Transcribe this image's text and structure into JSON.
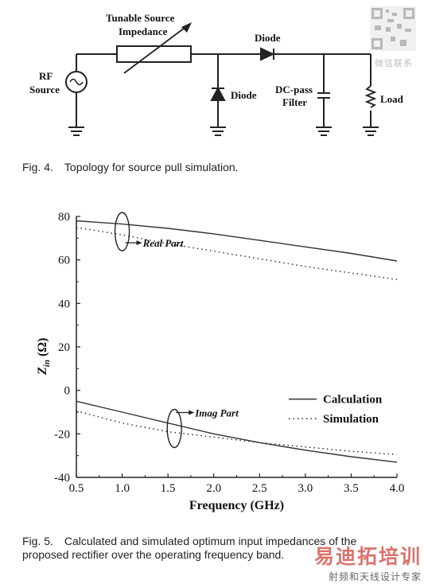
{
  "figure4": {
    "labels": {
      "rf_source": "RF",
      "rf_source2": "Source",
      "tunable1": "Tunable Source",
      "tunable2": "Impedance",
      "diode_series": "Diode",
      "diode_shunt": "Diode",
      "dcpass1": "DC-pass",
      "dcpass2": "Filter",
      "load": "Load"
    },
    "caption_num": "Fig. 4.",
    "caption_text": "Topology for source pull simulation."
  },
  "figure5": {
    "caption_num": "Fig. 5.",
    "caption_line1": "Calculated and simulated optimum input impedances of the",
    "caption_line2": "proposed rectifier over the operating frequency band."
  },
  "watermark": {
    "qr_text": "微信联系",
    "brand": "易迪拓培训",
    "subtitle": "射频和天线设计专家"
  },
  "chart_data": {
    "type": "line",
    "xlabel": "Frequency (GHz)",
    "ylabel_main": "Z",
    "ylabel_sub": "in",
    "ylabel_tail": " (Ω)",
    "xlim": [
      0.5,
      4.0
    ],
    "ylim": [
      -40,
      80
    ],
    "x_ticks": [
      "0.5",
      "1.0",
      "1.5",
      "2.0",
      "2.5",
      "3.0",
      "3.5",
      "4.0"
    ],
    "y_ticks": [
      "80",
      "60",
      "40",
      "20",
      "0",
      "-20",
      "-40"
    ],
    "x_tick_values": [
      0.5,
      1.0,
      1.5,
      2.0,
      2.5,
      3.0,
      3.5,
      4.0
    ],
    "y_tick_values": [
      80,
      60,
      40,
      20,
      0,
      -20,
      -40
    ],
    "x": [
      0.5,
      1.0,
      1.5,
      2.0,
      2.5,
      3.0,
      3.5,
      4.0
    ],
    "series": [
      {
        "name": "Calculation",
        "group": "Real Part",
        "style": "solid",
        "values": [
          78,
          76.5,
          74.5,
          72,
          69,
          66,
          63,
          59.5
        ]
      },
      {
        "name": "Simulation",
        "group": "Real Part",
        "style": "dotted",
        "values": [
          75,
          71.5,
          67.5,
          64,
          60.5,
          57,
          54,
          51
        ]
      },
      {
        "name": "Calculation",
        "group": "Imag Part",
        "style": "solid",
        "values": [
          -5,
          -10,
          -15,
          -20,
          -24,
          -27.5,
          -30.5,
          -33
        ]
      },
      {
        "name": "Simulation",
        "group": "Imag Part",
        "style": "dotted",
        "values": [
          -9.5,
          -15,
          -19,
          -21.5,
          -24,
          -26,
          -28,
          -29.5
        ]
      }
    ],
    "legend": [
      {
        "label": "Calculation",
        "style": "solid"
      },
      {
        "label": "Simulation",
        "style": "dotted"
      }
    ],
    "annotations": [
      {
        "text": "Real Part"
      },
      {
        "text": "Imag Part"
      }
    ],
    "legend_position": "right-middle"
  }
}
